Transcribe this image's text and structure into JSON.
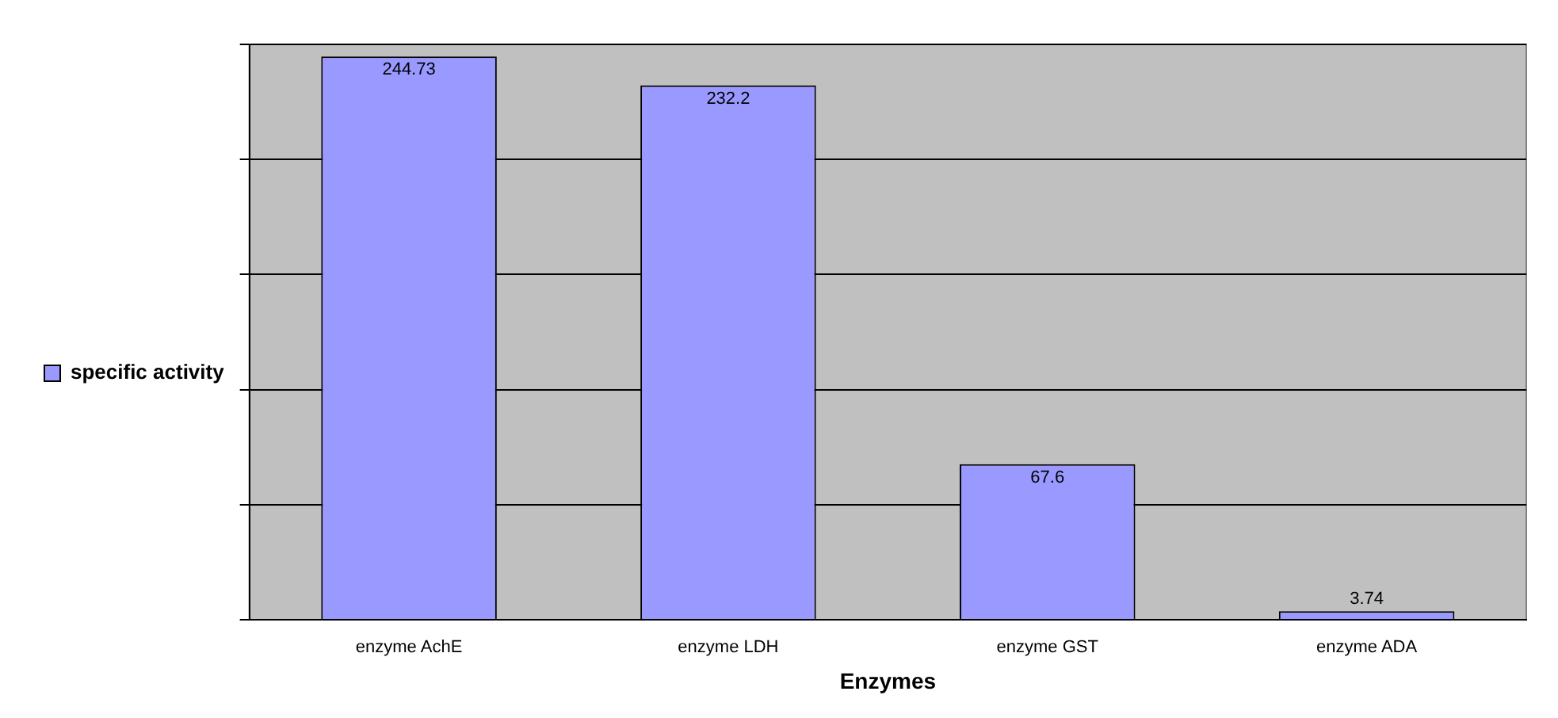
{
  "chart_data": {
    "type": "bar",
    "xlabel": "Enzymes",
    "categories": [
      "enzyme AchE",
      "enzyme LDH",
      "enzyme GST",
      "enzyme ADA"
    ],
    "series": [
      {
        "name": "specific activity",
        "color": "#9999ff",
        "values": [
          244.73,
          232.2,
          67.6,
          3.74
        ]
      }
    ],
    "ylim": [
      0,
      250
    ],
    "yticks": [
      {
        "value": 0,
        "label": null
      },
      {
        "value": 50,
        "label": null
      },
      {
        "value": 100,
        "label": null
      },
      {
        "value": 150,
        "label": null
      },
      {
        "value": 200,
        "label": null
      },
      {
        "value": 250,
        "label": null
      }
    ],
    "grid": "y",
    "legend": "left",
    "tick_labels": "x",
    "data_labels": true
  }
}
